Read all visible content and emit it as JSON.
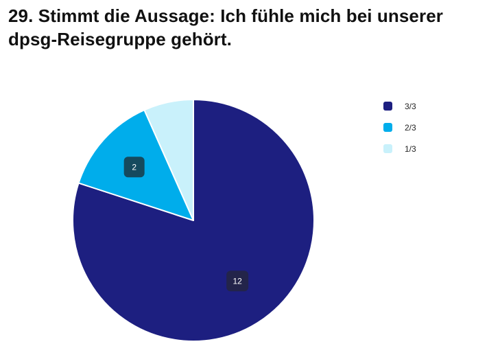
{
  "title": "29. Stimmt die Aussage: Ich fühle mich bei unserer dpsg-Reisegruppe gehört.",
  "chart_data": {
    "type": "pie",
    "title": "29. Stimmt die Aussage: Ich fühle mich bei unserer dpsg-Reisegruppe gehört.",
    "legend_position": "top-right",
    "slices": [
      {
        "label": "3/3",
        "value": 12,
        "color": "#1d1f80",
        "data_label": "12",
        "label_bg": "#23244a"
      },
      {
        "label": "2/3",
        "value": 2,
        "color": "#00adeb",
        "data_label": "2",
        "label_bg": "#154a5e"
      },
      {
        "label": "1/3",
        "value": 1,
        "color": "#c9f1fb",
        "data_label": "",
        "label_bg": ""
      }
    ]
  }
}
